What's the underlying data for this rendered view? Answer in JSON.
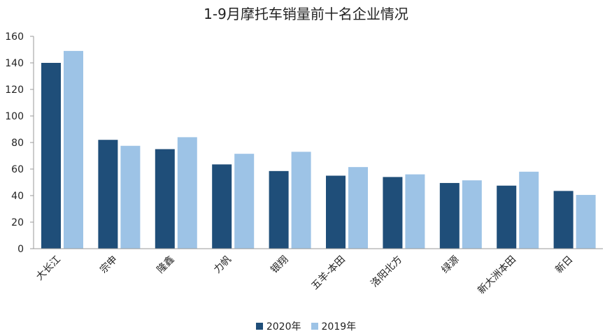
{
  "chart_data": {
    "type": "bar",
    "title": "1-9月摩托车销量前十名企业情况",
    "categories": [
      "大长江",
      "宗申",
      "隆鑫",
      "力帆",
      "银翔",
      "五羊-本田",
      "洛阳北方",
      "绿源",
      "新大洲本田",
      "新日"
    ],
    "series": [
      {
        "name": "2020年",
        "color": "#1f4e79",
        "values": [
          140,
          82,
          75,
          63.5,
          58.5,
          55,
          54,
          49.5,
          47.5,
          43.5
        ]
      },
      {
        "name": "2019年",
        "color": "#9dc3e6",
        "values": [
          149,
          77.5,
          84,
          71.5,
          73,
          61.5,
          56,
          51.5,
          58,
          40.5
        ]
      }
    ],
    "yticks": [
      0,
      20,
      40,
      60,
      80,
      100,
      120,
      140,
      160
    ],
    "ylim": [
      0,
      160
    ],
    "xlabel": "",
    "ylabel": "",
    "grid": false,
    "legend_position": "bottom"
  }
}
